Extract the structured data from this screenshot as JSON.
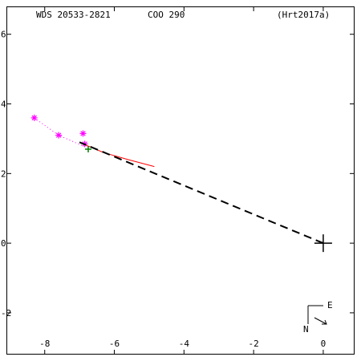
{
  "chart_data": {
    "type": "scatter",
    "header": {
      "left": "WDS 20533-2821",
      "center": "COO 290",
      "right": "(Hrt2017a)"
    },
    "x_ticks": [
      {
        "value": -8,
        "label": "-8"
      },
      {
        "value": -6,
        "label": "-6"
      },
      {
        "value": -4,
        "label": "-4"
      },
      {
        "value": -2,
        "label": "-2"
      },
      {
        "value": 0,
        "label": "0"
      }
    ],
    "y_ticks": [
      {
        "value": 6,
        "label": "6"
      },
      {
        "value": 4,
        "label": "4"
      },
      {
        "value": 2,
        "label": "2"
      },
      {
        "value": 0,
        "label": "0"
      },
      {
        "value": -2,
        "label": "-2"
      }
    ],
    "xlim": [
      -9.1,
      0.9
    ],
    "ylim": [
      -3.2,
      6.8
    ],
    "x_reversed": false,
    "grid": false,
    "orientation": {
      "north_label": "N",
      "east_label": "E"
    },
    "series": [
      {
        "kind": "dotted-path",
        "color": "#ff00ff",
        "points": [
          [
            -8.3,
            3.6
          ],
          [
            -7.6,
            3.1
          ],
          [
            -6.8,
            2.75
          ]
        ]
      },
      {
        "kind": "observation-markers",
        "marker": "asterisk",
        "color": "#ff00ff",
        "points": [
          [
            -8.3,
            3.6
          ],
          [
            -7.6,
            3.1
          ],
          [
            -6.9,
            3.15
          ],
          [
            -6.85,
            2.85
          ]
        ]
      },
      {
        "kind": "orbit-arc",
        "color": "#ff0000",
        "points": [
          [
            -6.9,
            2.85
          ],
          [
            -6.3,
            2.6
          ],
          [
            -5.6,
            2.4
          ],
          [
            -4.85,
            2.2
          ]
        ]
      },
      {
        "kind": "node-line",
        "color": "#000000",
        "dash": "dashed",
        "points": [
          [
            0,
            0
          ],
          [
            -7.0,
            2.9
          ]
        ]
      },
      {
        "kind": "plus-markers",
        "color": "#008000",
        "points": [
          [
            -6.75,
            2.7
          ]
        ]
      },
      {
        "kind": "primary-star",
        "marker": "plus",
        "color": "#000000",
        "points": [
          [
            0,
            0
          ]
        ]
      }
    ]
  }
}
